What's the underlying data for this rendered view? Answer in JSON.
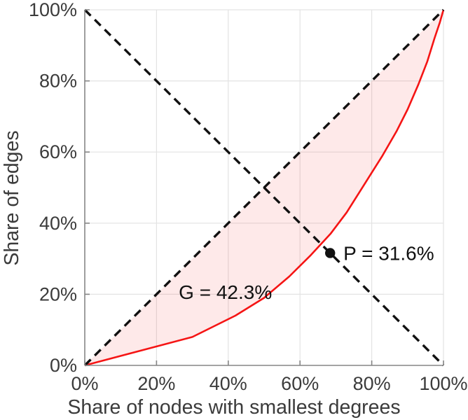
{
  "chart_data": {
    "type": "line",
    "title": "",
    "xlabel": "Share of nodes with smallest degrees",
    "ylabel": "Share of edges",
    "xlim": [
      0,
      100
    ],
    "ylim": [
      0,
      100
    ],
    "grid": true,
    "legend": "none",
    "tick_values": [
      0,
      20,
      40,
      60,
      80,
      100
    ],
    "x_tick_labels": [
      "0%",
      "20%",
      "40%",
      "60%",
      "80%",
      "100%"
    ],
    "y_tick_labels": [
      "0%",
      "20%",
      "40%",
      "60%",
      "80%",
      "100%"
    ],
    "series": [
      {
        "name": "lorenz-curve",
        "style": "solid",
        "points": [
          [
            0,
            0
          ],
          [
            30,
            8
          ],
          [
            42,
            14
          ],
          [
            50,
            19
          ],
          [
            57,
            25
          ],
          [
            63,
            31
          ],
          [
            68.5,
            37
          ],
          [
            73,
            43
          ],
          [
            78,
            51
          ],
          [
            83,
            59
          ],
          [
            87,
            66
          ],
          [
            90,
            72
          ],
          [
            93,
            79
          ],
          [
            95.5,
            85.5
          ],
          [
            97.5,
            92
          ],
          [
            99,
            96.5
          ],
          [
            100,
            100
          ]
        ]
      },
      {
        "name": "equality-diagonal",
        "style": "dashed",
        "points": [
          [
            0,
            0
          ],
          [
            100,
            100
          ]
        ]
      },
      {
        "name": "anti-diagonal",
        "style": "dashed",
        "points": [
          [
            0,
            100
          ],
          [
            100,
            0
          ]
        ]
      }
    ],
    "fill_between": {
      "upper": "equality-diagonal",
      "lower": "lorenz-curve",
      "meaning": "Gini area"
    },
    "marker_point": {
      "name": "balance-point",
      "x": 68.4,
      "y": 31.6
    },
    "annotations": [
      {
        "name": "gini-annotation",
        "text": "G = 42.3%",
        "x": 26.2,
        "y": 20.7,
        "anchor": "start"
      },
      {
        "name": "p-annotation",
        "text": "P = 31.6%",
        "x": 72.1,
        "y": 31.6,
        "anchor": "start"
      }
    ],
    "colors": {
      "curve": "#f51414",
      "fill": "rgba(244,70,70,0.12)",
      "dashed": "#111111",
      "grid": "#e3e3e3",
      "axis": "#858585",
      "tick_text": "#3b3b3b",
      "annotation_text": "#111111",
      "marker": "#111111",
      "background": "#ffffff"
    }
  }
}
